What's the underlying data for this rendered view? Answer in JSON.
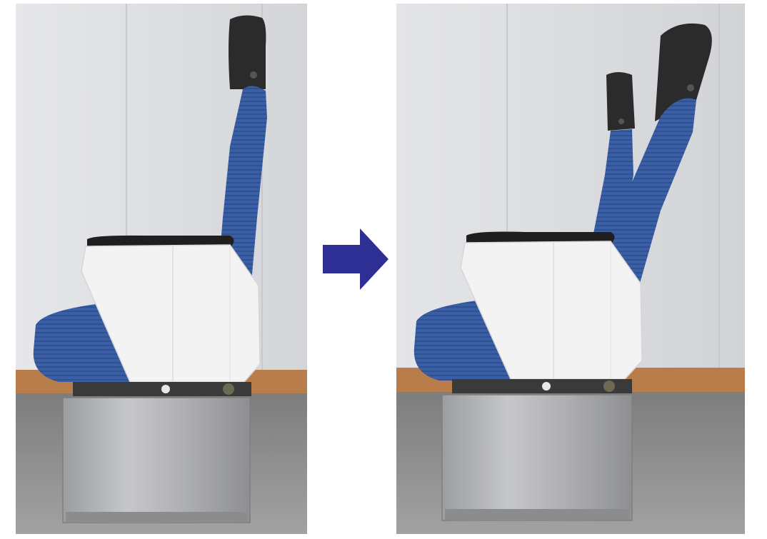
{
  "colors": {
    "wall": "#dedfe2",
    "wall_joint": "#c9cbce",
    "baseboard": "#b97d4c",
    "carpet": "#8f8f8f",
    "upholstery": "#3a5fa6",
    "upholstery_dark": "#2c4b88",
    "headrest": "#2b2b2b",
    "side_panel": "#f3f3f3",
    "armrest": "#1f1f1f",
    "pedestal": "#b2b3b5",
    "arrow": "#2e2f95"
  },
  "photos": [
    {
      "state": "upright",
      "headrest_count": 1
    },
    {
      "state": "reclined",
      "headrest_count": 2
    }
  ],
  "arrow": {
    "direction": "right",
    "icon": "right-arrow-icon"
  }
}
